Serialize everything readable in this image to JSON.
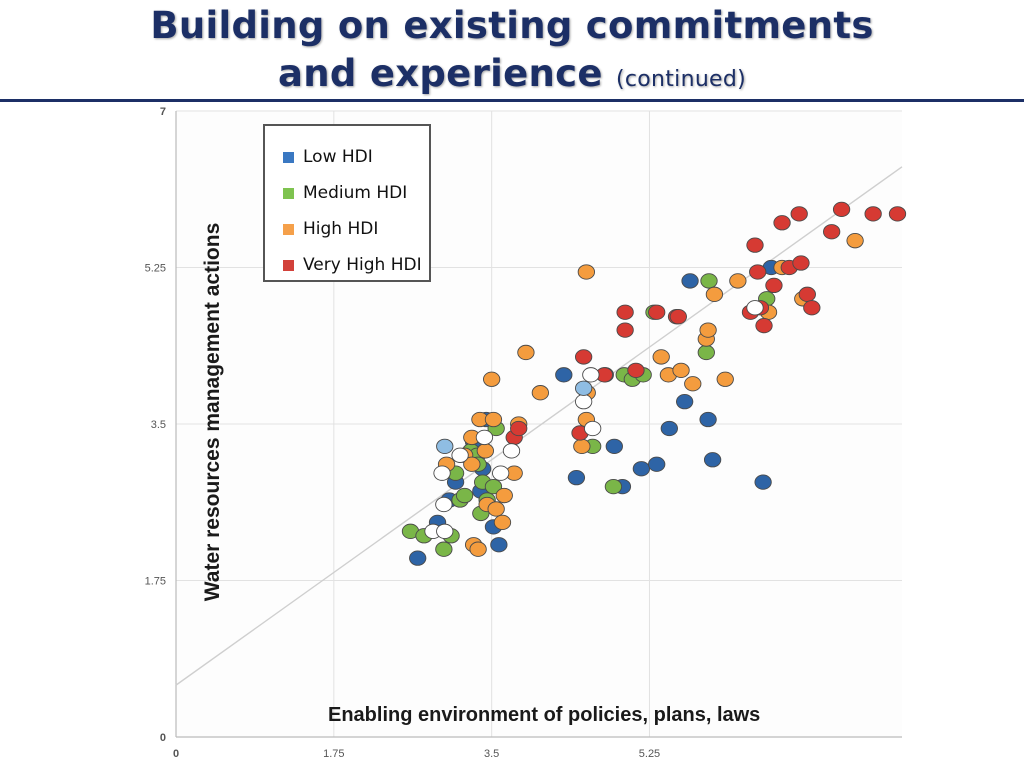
{
  "slide": {
    "title_line1": "Building on existing commitments",
    "title_line2": "and experience",
    "title_suffix": "(continued)"
  },
  "chart_data": {
    "type": "scatter",
    "xlabel": "Enabling environment of policies, plans, laws",
    "ylabel": "Water resources management actions",
    "xlim": [
      0,
      8.05
    ],
    "ylim": [
      0,
      7
    ],
    "xticks": [
      "0",
      "1.75",
      "3.5",
      "5.25"
    ],
    "yticks": [
      "0",
      "1.75",
      "3.5",
      "5.25",
      "7"
    ],
    "grid": true,
    "legend_position": "top-left",
    "trendline": {
      "intercept": 0.58,
      "slope": 0.72
    },
    "series": [
      {
        "name": "Low HDI",
        "color": "#2e64a6",
        "points": [
          [
            2.68,
            2.0
          ],
          [
            2.9,
            2.4
          ],
          [
            3.03,
            2.65
          ],
          [
            3.1,
            2.85
          ],
          [
            3.3,
            3.3
          ],
          [
            3.38,
            2.75
          ],
          [
            3.4,
            3.0
          ],
          [
            3.52,
            2.35
          ],
          [
            3.58,
            2.15
          ],
          [
            3.44,
            3.55
          ],
          [
            4.44,
            2.9
          ],
          [
            4.86,
            3.25
          ],
          [
            4.95,
            2.8
          ],
          [
            5.16,
            3.0
          ],
          [
            5.33,
            3.05
          ],
          [
            5.47,
            3.45
          ],
          [
            5.64,
            3.75
          ],
          [
            5.95,
            3.1
          ],
          [
            5.9,
            3.55
          ],
          [
            6.51,
            2.85
          ],
          [
            4.3,
            4.05
          ],
          [
            4.76,
            4.05
          ],
          [
            5.7,
            5.1
          ],
          [
            6.6,
            5.25
          ]
        ]
      },
      {
        "name": "Medium HDI",
        "color": "#7ab648",
        "points": [
          [
            2.6,
            2.3
          ],
          [
            2.75,
            2.25
          ],
          [
            3.05,
            2.25
          ],
          [
            2.97,
            2.1
          ],
          [
            3.15,
            2.65
          ],
          [
            3.2,
            2.7
          ],
          [
            3.1,
            2.95
          ],
          [
            3.27,
            3.2
          ],
          [
            3.34,
            3.15
          ],
          [
            3.35,
            3.05
          ],
          [
            3.4,
            2.85
          ],
          [
            3.38,
            2.5
          ],
          [
            3.45,
            2.65
          ],
          [
            3.52,
            2.8
          ],
          [
            3.55,
            3.45
          ],
          [
            4.62,
            3.25
          ],
          [
            4.85,
            2.8
          ],
          [
            4.97,
            4.05
          ],
          [
            5.06,
            4.0
          ],
          [
            5.18,
            4.05
          ],
          [
            5.3,
            4.75
          ],
          [
            5.88,
            4.3
          ],
          [
            5.91,
            5.1
          ],
          [
            6.55,
            4.9
          ]
        ]
      },
      {
        "name": "High HDI",
        "color": "#f49c3e",
        "points": [
          [
            3.0,
            3.05
          ],
          [
            3.2,
            3.15
          ],
          [
            3.28,
            3.05
          ],
          [
            3.28,
            3.35
          ],
          [
            3.37,
            3.55
          ],
          [
            3.43,
            3.2
          ],
          [
            3.52,
            3.55
          ],
          [
            3.5,
            4.0
          ],
          [
            3.45,
            2.6
          ],
          [
            3.55,
            2.55
          ],
          [
            3.3,
            2.15
          ],
          [
            3.35,
            2.1
          ],
          [
            3.62,
            2.4
          ],
          [
            3.64,
            2.7
          ],
          [
            3.75,
            2.95
          ],
          [
            3.8,
            3.5
          ],
          [
            3.88,
            4.3
          ],
          [
            4.04,
            3.85
          ],
          [
            4.5,
            3.25
          ],
          [
            4.55,
            3.55
          ],
          [
            4.56,
            3.85
          ],
          [
            4.55,
            5.2
          ],
          [
            5.38,
            4.25
          ],
          [
            5.46,
            4.05
          ],
          [
            5.6,
            4.1
          ],
          [
            5.73,
            3.95
          ],
          [
            5.88,
            4.45
          ],
          [
            5.9,
            4.55
          ],
          [
            5.97,
            4.95
          ],
          [
            6.09,
            4.0
          ],
          [
            6.23,
            5.1
          ],
          [
            6.57,
            4.75
          ],
          [
            6.72,
            5.25
          ],
          [
            6.95,
            4.9
          ],
          [
            7.53,
            5.55
          ]
        ]
      },
      {
        "name": "Very High HDI",
        "color": "#d63a33",
        "points": [
          [
            3.75,
            3.35
          ],
          [
            3.8,
            3.45
          ],
          [
            4.48,
            3.4
          ],
          [
            4.52,
            4.25
          ],
          [
            4.75,
            4.05
          ],
          [
            4.98,
            4.75
          ],
          [
            4.98,
            4.55
          ],
          [
            5.1,
            4.1
          ],
          [
            5.33,
            4.75
          ],
          [
            5.55,
            4.7
          ],
          [
            5.57,
            4.7
          ],
          [
            6.37,
            4.75
          ],
          [
            6.48,
            4.8
          ],
          [
            6.52,
            4.6
          ],
          [
            6.42,
            5.5
          ],
          [
            6.45,
            5.2
          ],
          [
            6.63,
            5.05
          ],
          [
            6.72,
            5.75
          ],
          [
            6.8,
            5.25
          ],
          [
            6.91,
            5.85
          ],
          [
            6.93,
            5.3
          ],
          [
            7.0,
            4.95
          ],
          [
            7.05,
            4.8
          ],
          [
            7.27,
            5.65
          ],
          [
            7.38,
            5.9
          ],
          [
            7.73,
            5.85
          ],
          [
            8.0,
            5.85
          ]
        ]
      },
      {
        "name": "",
        "color": "#ffffff",
        "points": [
          [
            2.85,
            2.3
          ],
          [
            2.98,
            2.3
          ],
          [
            2.97,
            2.6
          ],
          [
            2.95,
            2.95
          ],
          [
            3.15,
            3.15
          ],
          [
            3.42,
            3.35
          ],
          [
            3.6,
            2.95
          ],
          [
            3.72,
            3.2
          ],
          [
            4.52,
            3.75
          ],
          [
            4.6,
            4.05
          ],
          [
            4.62,
            3.45
          ],
          [
            6.42,
            4.8
          ]
        ]
      },
      {
        "name": "",
        "color": "#8fbde3",
        "points": [
          [
            2.98,
            3.25
          ],
          [
            4.52,
            3.9
          ]
        ]
      }
    ],
    "legend": [
      {
        "label": "Low HDI",
        "color": "#3a78c2"
      },
      {
        "label": "Medium HDI",
        "color": "#7ec34f"
      },
      {
        "label": "High HDI",
        "color": "#f5a04a"
      },
      {
        "label": "Very High HDI",
        "color": "#d2413a"
      }
    ]
  }
}
